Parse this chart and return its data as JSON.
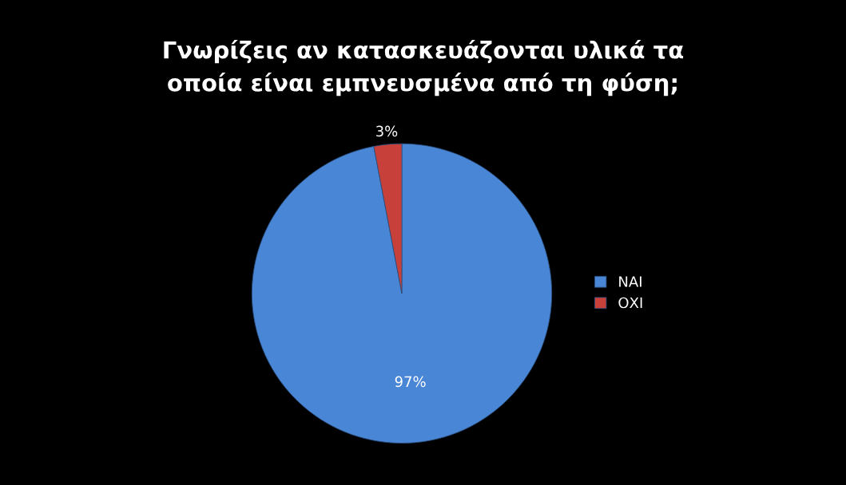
{
  "chart_data": {
    "type": "pie",
    "title": "Γνωρίζεις αν κατασκευάζονται υλικά τα οποία είναι εμπνευσμένα από τη φύση;",
    "categories": [
      "ΝΑΙ",
      "ΟΧΙ"
    ],
    "values": [
      97,
      3
    ],
    "value_labels": [
      "97%",
      "3%"
    ],
    "colors": [
      "#4a86d6",
      "#c8403a"
    ],
    "legend": "right"
  }
}
